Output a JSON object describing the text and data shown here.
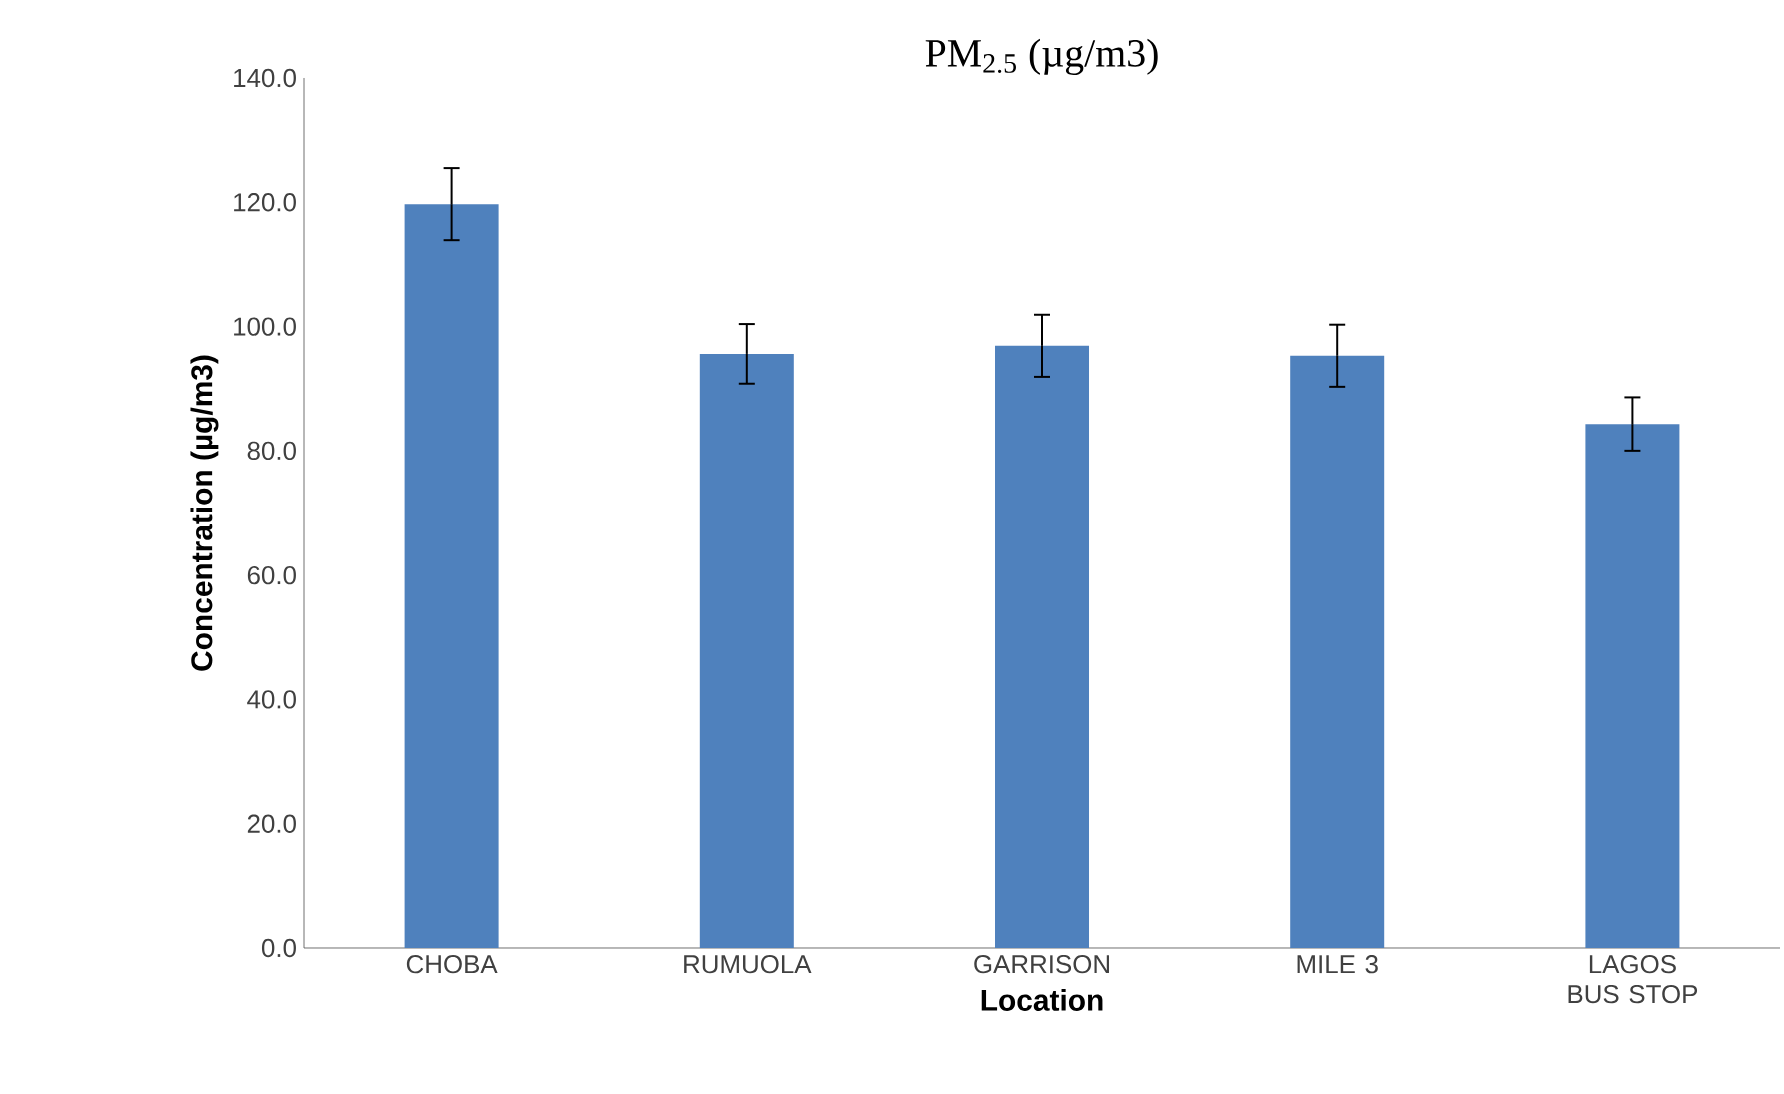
{
  "chart_data": {
    "type": "bar",
    "title": "PM$_{2.5}$ (µg/m3)",
    "xlabel": "Location",
    "ylabel": "Concentration (µg/m3)",
    "categories": [
      "CHOBA",
      "RUMUOLA",
      "GARRISON",
      "MILE 3",
      "LAGOS BUS STOP"
    ],
    "values": [
      119.7,
      95.6,
      96.9,
      95.3,
      84.3
    ],
    "errors": [
      5.8,
      4.8,
      5.0,
      5.0,
      4.3
    ],
    "color": "#4f81bd",
    "ylim": [
      0,
      140
    ],
    "yticks": [
      {
        "value": 0,
        "label": "0.0"
      },
      {
        "value": 20,
        "label": "20.0"
      },
      {
        "value": 40,
        "label": "40.0"
      },
      {
        "value": 60,
        "label": "60.0"
      },
      {
        "value": 80,
        "label": "80.0"
      },
      {
        "value": 100,
        "label": "100.0"
      },
      {
        "value": 120,
        "label": "120.0"
      },
      {
        "value": 140,
        "label": "140.0"
      }
    ],
    "grid": false
  }
}
